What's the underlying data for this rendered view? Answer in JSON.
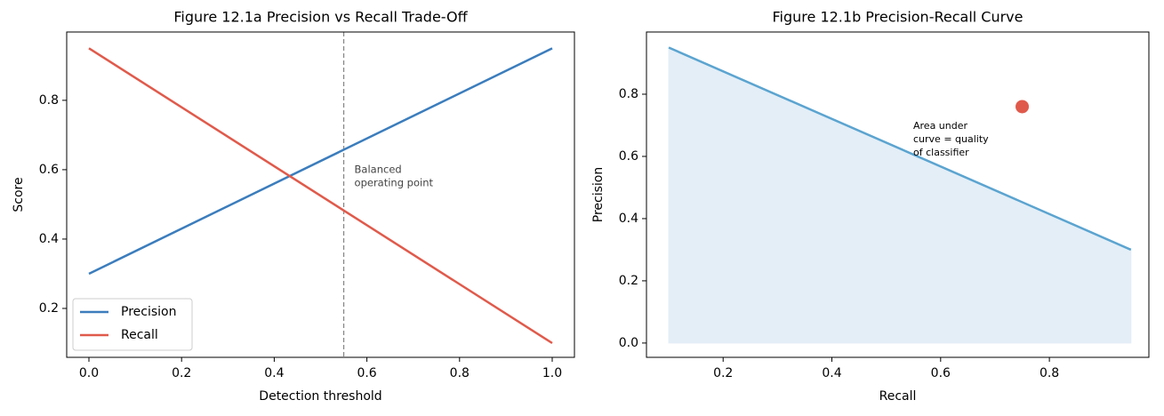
{
  "chart_data": [
    {
      "type": "line",
      "title": "Figure 12.1a  Precision vs Recall Trade-Off",
      "x_label": "Detection threshold",
      "y_label": "Score",
      "x": [
        0,
        1
      ],
      "series": [
        {
          "name": "Precision",
          "color": "#3b7dbd",
          "values": [
            0.3,
            0.95
          ]
        },
        {
          "name": "Recall",
          "color": "#e05a4b",
          "values": [
            0.95,
            0.1
          ]
        }
      ],
      "vline": 0.55,
      "vline_color": "#888888",
      "annotation": [
        "Balanced",
        "operating point"
      ],
      "xlim": [
        -0.048,
        1.048
      ],
      "xticks": [
        {
          "value": 0,
          "label": "0.0"
        },
        0.2,
        0.4,
        0.6,
        0.8,
        {
          "value": 1,
          "label": "1.0"
        }
      ],
      "ylim": [
        0.059,
        0.997
      ],
      "yticks": [
        0.2,
        0.4,
        0.6,
        0.8
      ],
      "legend": "lower left",
      "grid": false
    },
    {
      "type": "area",
      "title": "Figure 12.1b  Precision-Recall Curve",
      "x_label": "Recall",
      "y_label": "Precision",
      "x": [
        0.1,
        0.95
      ],
      "series": [
        {
          "color": "#5ba4d0",
          "fill": "#e3eef7",
          "values": [
            0.95,
            0.3
          ]
        }
      ],
      "marker": {
        "x": [
          0.75
        ],
        "values": [
          0.76
        ],
        "color": "#e05a4b"
      },
      "annotation": [
        "Area under",
        "curve = quality",
        "of classifier"
      ],
      "xlim": [
        0.059,
        0.983
      ],
      "xticks": [
        0.2,
        0.4,
        0.6,
        0.8
      ],
      "ylim": [
        -0.046,
        1.0
      ],
      "yticks": [
        {
          "value": 0,
          "label": "0.0"
        },
        0.2,
        0.4,
        0.6,
        0.8
      ],
      "grid": false
    }
  ]
}
